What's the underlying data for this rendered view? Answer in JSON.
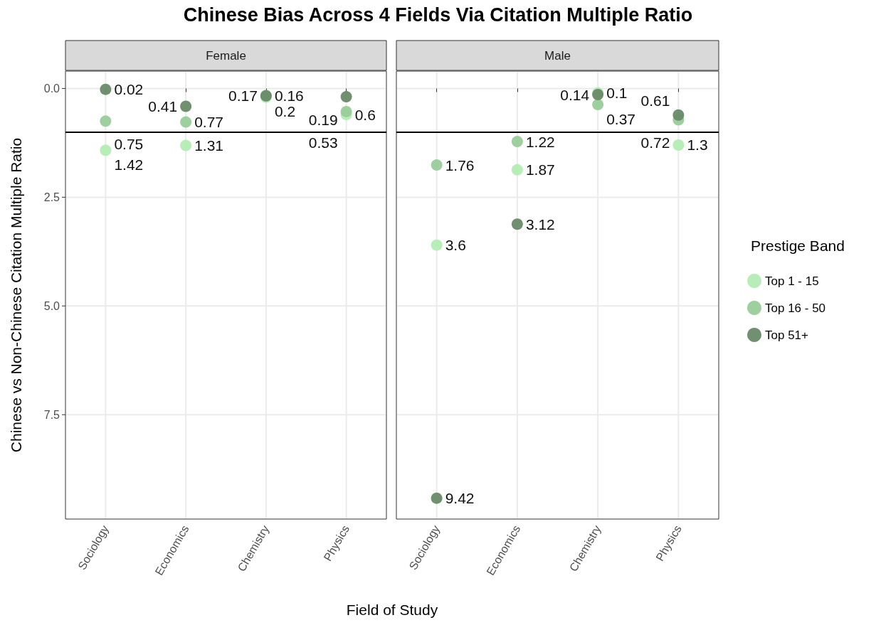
{
  "chart_data": [
    {
      "type": "scatter",
      "title": "Chinese Bias Across 4 Fields Via Citation Multiple Ratio",
      "subtitle": "Female",
      "xlabel": "Field of Study",
      "ylabel": "Chinese vs Non-Chinese Citation Multiple Ratio",
      "categories": [
        "Sociology",
        "Economics",
        "Chemistry",
        "Physics"
      ],
      "series": [
        {
          "color": "#b3ecb3",
          "values": [
            1.42,
            1.31,
            0.2,
            0.6
          ]
        },
        {
          "color": "#99cc99",
          "values": [
            0.75,
            0.77,
            0.16,
            0.53
          ]
        },
        {
          "color": "#688a68",
          "values": [
            0.02,
            0.41,
            0.17,
            0.19
          ]
        }
      ],
      "ylim": [
        9.9,
        -0.4
      ],
      "yticks": [
        {
          "value": 0,
          "label": "0.0"
        },
        2.5,
        {
          "value": 5,
          "label": "5.0"
        },
        7.5
      ],
      "ref_lines": [
        {
          "axis": "y",
          "value": 1
        }
      ],
      "grid": true,
      "marker": "circle",
      "data_labels": true,
      "legend": false
    },
    {
      "type": "scatter",
      "subtitle": "Male",
      "legend_title": "Prestige Band",
      "categories": [
        "Sociology",
        "Economics",
        "Chemistry",
        "Physics"
      ],
      "series": [
        {
          "name": "Top 1 - 15",
          "color": "#b3ecb3",
          "values": [
            3.6,
            1.87,
            0.1,
            1.3
          ]
        },
        {
          "name": "Top 16 - 50",
          "color": "#99cc99",
          "values": [
            1.76,
            1.22,
            0.37,
            0.72
          ]
        },
        {
          "name": "Top 51+",
          "color": "#688a68",
          "values": [
            9.42,
            3.12,
            0.14,
            0.61
          ]
        }
      ],
      "ylim": [
        9.9,
        -0.4
      ],
      "yticks": [
        0,
        2.5,
        5,
        7.5
      ],
      "ref_lines": [
        {
          "axis": "y",
          "value": 1
        }
      ],
      "grid": true,
      "marker": "circle",
      "data_labels": true,
      "legend": "right",
      "tick_labels": "x"
    }
  ]
}
